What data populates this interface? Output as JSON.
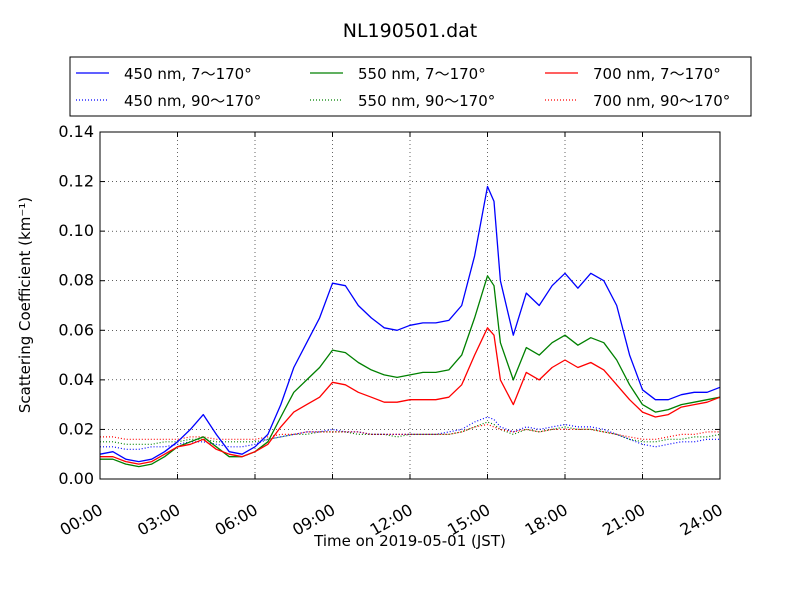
{
  "chart_data": {
    "type": "line",
    "title": "NL190501.dat",
    "xlabel": "Time on 2019-05-01 (JST)",
    "ylabel": "Scattering Coefficient (km⁻¹)",
    "xlim": [
      0,
      24
    ],
    "ylim": [
      0,
      0.14
    ],
    "x_ticks": [
      0,
      3,
      6,
      9,
      12,
      15,
      18,
      21,
      24
    ],
    "x_tick_labels": [
      "00:00",
      "03:00",
      "06:00",
      "09:00",
      "12:00",
      "15:00",
      "18:00",
      "21:00",
      "24:00"
    ],
    "y_ticks": [
      0,
      0.02,
      0.04,
      0.06,
      0.08,
      0.1,
      0.12,
      0.14
    ],
    "y_tick_labels": [
      "0.00",
      "0.02",
      "0.04",
      "0.06",
      "0.08",
      "0.10",
      "0.12",
      "0.14"
    ],
    "grid": true,
    "legend_placement": "top",
    "x": [
      0,
      0.5,
      1,
      1.5,
      2,
      2.5,
      3,
      3.5,
      4,
      4.5,
      5,
      5.5,
      6,
      6.5,
      7,
      7.5,
      8,
      8.5,
      9,
      9.5,
      10,
      10.5,
      11,
      11.5,
      12,
      12.5,
      13,
      13.5,
      14,
      14.5,
      15,
      15.25,
      15.5,
      16,
      16.5,
      17,
      17.5,
      18,
      18.5,
      19,
      19.5,
      20,
      20.5,
      21,
      21.5,
      22,
      22.5,
      23,
      23.5,
      24
    ],
    "series": [
      {
        "name": "450 nm, 7～170°",
        "color": "#0000ff",
        "style": "solid",
        "values": [
          0.01,
          0.011,
          0.008,
          0.007,
          0.008,
          0.011,
          0.015,
          0.02,
          0.026,
          0.018,
          0.011,
          0.01,
          0.013,
          0.018,
          0.03,
          0.045,
          0.055,
          0.065,
          0.079,
          0.078,
          0.07,
          0.065,
          0.061,
          0.06,
          0.062,
          0.063,
          0.063,
          0.064,
          0.07,
          0.09,
          0.118,
          0.112,
          0.08,
          0.058,
          0.075,
          0.07,
          0.078,
          0.083,
          0.077,
          0.083,
          0.08,
          0.07,
          0.05,
          0.036,
          0.032,
          0.032,
          0.034,
          0.035,
          0.035,
          0.037
        ]
      },
      {
        "name": "550 nm, 7～170°",
        "color": "#008000",
        "style": "solid",
        "values": [
          0.008,
          0.008,
          0.006,
          0.005,
          0.006,
          0.009,
          0.013,
          0.015,
          0.017,
          0.013,
          0.009,
          0.009,
          0.011,
          0.015,
          0.025,
          0.035,
          0.04,
          0.045,
          0.052,
          0.051,
          0.047,
          0.044,
          0.042,
          0.041,
          0.042,
          0.043,
          0.043,
          0.044,
          0.05,
          0.065,
          0.082,
          0.078,
          0.055,
          0.04,
          0.053,
          0.05,
          0.055,
          0.058,
          0.054,
          0.057,
          0.055,
          0.048,
          0.038,
          0.03,
          0.027,
          0.028,
          0.03,
          0.031,
          0.032,
          0.033
        ]
      },
      {
        "name": "700 nm, 7～170°",
        "color": "#ff0000",
        "style": "solid",
        "values": [
          0.009,
          0.009,
          0.007,
          0.006,
          0.007,
          0.01,
          0.013,
          0.014,
          0.016,
          0.012,
          0.01,
          0.009,
          0.011,
          0.014,
          0.021,
          0.027,
          0.03,
          0.033,
          0.039,
          0.038,
          0.035,
          0.033,
          0.031,
          0.031,
          0.032,
          0.032,
          0.032,
          0.033,
          0.038,
          0.05,
          0.061,
          0.058,
          0.04,
          0.03,
          0.043,
          0.04,
          0.045,
          0.048,
          0.045,
          0.047,
          0.044,
          0.038,
          0.032,
          0.027,
          0.025,
          0.026,
          0.029,
          0.03,
          0.031,
          0.033
        ]
      },
      {
        "name": "450 nm, 90～170°",
        "color": "#0000ff",
        "style": "dotted",
        "values": [
          0.013,
          0.013,
          0.012,
          0.012,
          0.013,
          0.013,
          0.014,
          0.015,
          0.015,
          0.014,
          0.013,
          0.013,
          0.014,
          0.016,
          0.017,
          0.018,
          0.019,
          0.019,
          0.02,
          0.019,
          0.019,
          0.018,
          0.018,
          0.018,
          0.018,
          0.018,
          0.018,
          0.019,
          0.02,
          0.023,
          0.025,
          0.024,
          0.021,
          0.019,
          0.021,
          0.02,
          0.021,
          0.022,
          0.021,
          0.021,
          0.02,
          0.018,
          0.016,
          0.014,
          0.013,
          0.014,
          0.015,
          0.015,
          0.016,
          0.016
        ]
      },
      {
        "name": "550 nm, 90～170°",
        "color": "#008000",
        "style": "dotted",
        "values": [
          0.015,
          0.015,
          0.014,
          0.014,
          0.014,
          0.015,
          0.015,
          0.016,
          0.016,
          0.015,
          0.015,
          0.015,
          0.015,
          0.016,
          0.017,
          0.018,
          0.018,
          0.019,
          0.019,
          0.019,
          0.018,
          0.018,
          0.018,
          0.017,
          0.018,
          0.018,
          0.018,
          0.018,
          0.019,
          0.021,
          0.023,
          0.022,
          0.02,
          0.018,
          0.02,
          0.019,
          0.02,
          0.021,
          0.02,
          0.02,
          0.019,
          0.018,
          0.016,
          0.015,
          0.015,
          0.016,
          0.016,
          0.017,
          0.017,
          0.018
        ]
      },
      {
        "name": "700 nm, 90～170°",
        "color": "#ff0000",
        "style": "dotted",
        "values": [
          0.017,
          0.017,
          0.016,
          0.016,
          0.016,
          0.016,
          0.016,
          0.017,
          0.017,
          0.016,
          0.016,
          0.016,
          0.016,
          0.017,
          0.018,
          0.018,
          0.019,
          0.019,
          0.019,
          0.019,
          0.019,
          0.018,
          0.018,
          0.018,
          0.018,
          0.018,
          0.018,
          0.018,
          0.019,
          0.021,
          0.022,
          0.021,
          0.02,
          0.019,
          0.02,
          0.019,
          0.02,
          0.02,
          0.02,
          0.02,
          0.019,
          0.018,
          0.017,
          0.016,
          0.016,
          0.017,
          0.018,
          0.018,
          0.019,
          0.019
        ]
      }
    ]
  }
}
